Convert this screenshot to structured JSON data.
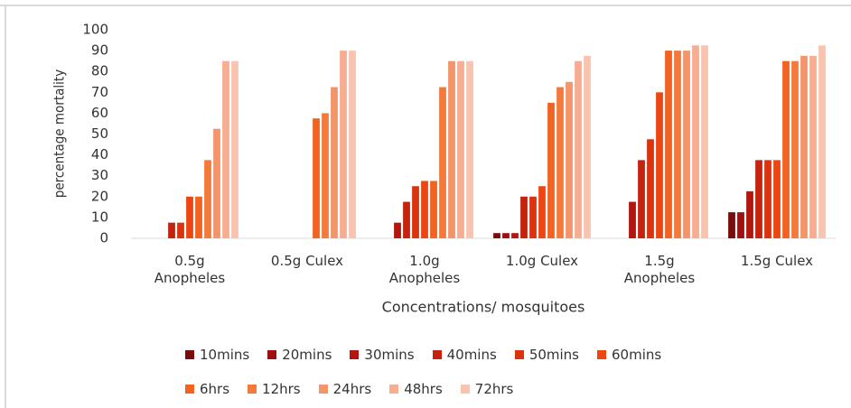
{
  "chart_data": {
    "type": "bar",
    "y_label": "percentage mortality",
    "x_label": "Concentrations/ mosquitoes",
    "categories": [
      "0.5g Anopheles",
      "0.5g Culex",
      "1.0g Anopheles",
      "1.0g Culex",
      "1.5g Anopheles",
      "1.5g Culex"
    ],
    "series": [
      {
        "name": "10mins",
        "color": "#7a0c0c",
        "values": [
          0,
          0,
          0,
          2.5,
          0,
          12.5
        ]
      },
      {
        "name": "20mins",
        "color": "#9e1010",
        "values": [
          0,
          0,
          0,
          2.5,
          0,
          12.5
        ]
      },
      {
        "name": "30mins",
        "color": "#b2160f",
        "values": [
          0,
          0,
          7.5,
          2.5,
          17.5,
          22.5
        ]
      },
      {
        "name": "40mins",
        "color": "#c6230f",
        "values": [
          7.5,
          0,
          17.5,
          20,
          37.5,
          37.5
        ]
      },
      {
        "name": "50mins",
        "color": "#dc330f",
        "values": [
          7.5,
          0,
          25,
          20,
          47.5,
          37.5
        ]
      },
      {
        "name": "60mins",
        "color": "#ee4612",
        "values": [
          20,
          0,
          27.5,
          25,
          70,
          37.5
        ]
      },
      {
        "name": "6hrs",
        "color": "#f26322",
        "values": [
          20,
          57.5,
          27.5,
          65,
          90,
          85
        ]
      },
      {
        "name": "12hrs",
        "color": "#f47a3c",
        "values": [
          37.5,
          60,
          72.5,
          72.5,
          90,
          85
        ]
      },
      {
        "name": "24hrs",
        "color": "#f4946a",
        "values": [
          52.5,
          72.5,
          85,
          75,
          90,
          87.5
        ]
      },
      {
        "name": "48hrs",
        "color": "#f7ad92",
        "values": [
          85,
          90,
          85,
          85,
          92.5,
          87.5
        ]
      },
      {
        "name": "72hrs",
        "color": "#f9c4af",
        "values": [
          85,
          90,
          85,
          87.5,
          92.5,
          92.5
        ]
      }
    ],
    "ylim": [
      0,
      100
    ],
    "yticks": [
      0,
      10,
      20,
      30,
      40,
      50,
      60,
      70,
      80,
      90,
      100
    ],
    "grid": false
  }
}
